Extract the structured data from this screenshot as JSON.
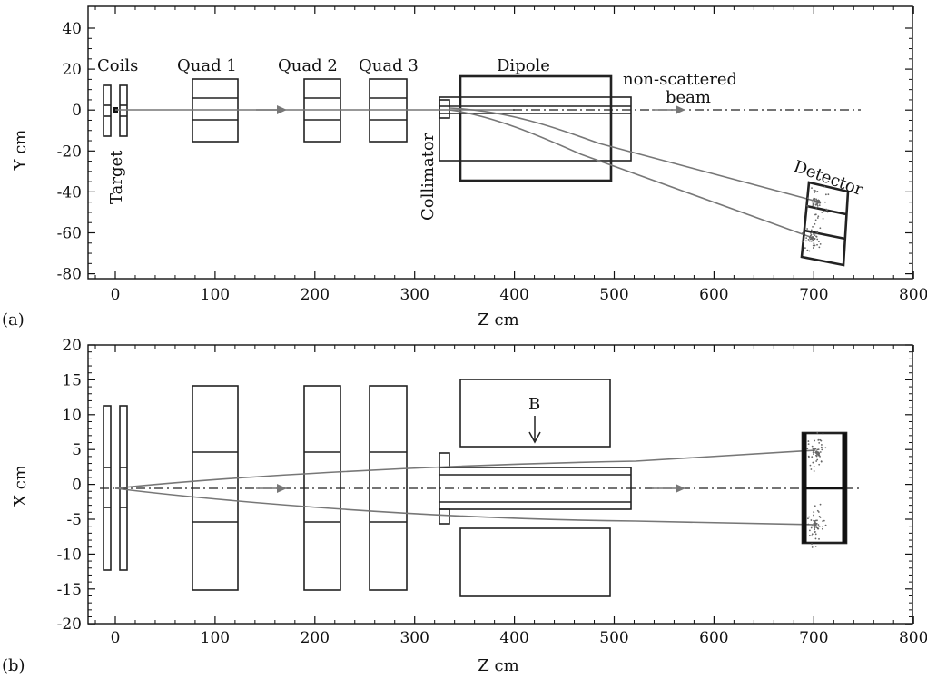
{
  "panel_a": {
    "tag": "(a)",
    "ylabel": "Y cm",
    "xlabel": "Z cm",
    "xticks": [
      "0",
      "100",
      "200",
      "300",
      "400",
      "500",
      "600",
      "700",
      "800"
    ],
    "yticks": [
      "40",
      "20",
      "0",
      "-20",
      "-40",
      "-60",
      "-80"
    ],
    "labels": {
      "coils": "Coils",
      "target": "Target",
      "quad1": "Quad 1",
      "quad2": "Quad 2",
      "quad3": "Quad 3",
      "dipole": "Dipole",
      "collimator": "Collimator",
      "beam_line1": "non-scattered",
      "beam_line2": "beam",
      "detector": "Detector"
    }
  },
  "panel_b": {
    "tag": "(b)",
    "ylabel": "X cm",
    "xlabel": "Z cm",
    "xticks": [
      "0",
      "100",
      "200",
      "300",
      "400",
      "500",
      "600",
      "700",
      "800"
    ],
    "yticks": [
      "20",
      "15",
      "10",
      "5",
      "0",
      "-5",
      "-10",
      "-15",
      "-20"
    ],
    "labels": {
      "field": "B"
    }
  },
  "colors": {
    "ink": "#222222",
    "beam": "#777777",
    "hits": "#666666"
  }
}
